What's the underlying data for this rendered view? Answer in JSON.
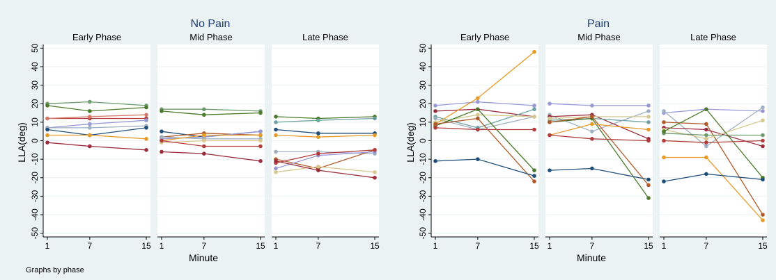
{
  "note": "Graphs by phase",
  "colors": {
    "figure_bg": "#eaf2f3",
    "plot_bg": "#ffffff",
    "strip_bg": "#eaf2f3",
    "gridline": "#eaf2f3"
  },
  "chart_data": [
    {
      "type": "line",
      "title": "No Pain",
      "xlabel": "Minute",
      "ylabel": "LLA(deg)",
      "x": [
        1,
        7,
        15
      ],
      "xticks": [
        "1",
        "7",
        "15"
      ],
      "ylim": [
        -52,
        52
      ],
      "yticks": [
        -50,
        -40,
        -30,
        -20,
        -10,
        0,
        10,
        20,
        30,
        40,
        50
      ],
      "grid": true,
      "panels": [
        {
          "title": "Early Phase",
          "series": [
            {
              "color": "#6e9a6e",
              "values": [
                20,
                21,
                19
              ]
            },
            {
              "color": "#4a7a2a",
              "values": [
                19,
                16,
                18
              ]
            },
            {
              "color": "#b23b3b",
              "values": [
                12,
                12,
                12
              ]
            },
            {
              "color": "#d67a6a",
              "values": [
                12,
                13,
                14
              ]
            },
            {
              "color": "#9999d6",
              "values": [
                7,
                9,
                11
              ]
            },
            {
              "color": "#9fb0c0",
              "values": [
                7,
                7,
                8
              ]
            },
            {
              "color": "#1e4d7a",
              "values": [
                6,
                3,
                7
              ]
            },
            {
              "color": "#e69b27",
              "values": [
                3,
                3,
                1
              ]
            },
            {
              "color": "#9b2d3d",
              "values": [
                -1,
                -3,
                -5
              ]
            }
          ]
        },
        {
          "title": "Mid Phase",
          "series": [
            {
              "color": "#6e9a6e",
              "values": [
                17,
                17,
                16
              ]
            },
            {
              "color": "#4a7a2a",
              "values": [
                16,
                14,
                15
              ]
            },
            {
              "color": "#1e4d7a",
              "values": [
                5,
                2,
                5
              ]
            },
            {
              "color": "#b05a2a",
              "values": [
                2,
                4,
                3
              ]
            },
            {
              "color": "#9999d6",
              "values": [
                1,
                2,
                5
              ]
            },
            {
              "color": "#9fb0c0",
              "values": [
                2,
                1,
                1
              ]
            },
            {
              "color": "#e69b27",
              "values": [
                0,
                3,
                3
              ]
            },
            {
              "color": "#d6c890",
              "values": [
                -1,
                0,
                0
              ]
            },
            {
              "color": "#b23b3b",
              "values": [
                0,
                -3,
                -3
              ]
            },
            {
              "color": "#9b2d3d",
              "values": [
                -6,
                -7,
                -11
              ]
            }
          ]
        },
        {
          "title": "Late Phase",
          "series": [
            {
              "color": "#4a7a2a",
              "values": [
                13,
                12,
                13
              ]
            },
            {
              "color": "#6fa3a3",
              "values": [
                10,
                11,
                12
              ]
            },
            {
              "color": "#1e4d7a",
              "values": [
                6,
                4,
                4
              ]
            },
            {
              "color": "#e69b27",
              "values": [
                3,
                2,
                3
              ]
            },
            {
              "color": "#9fb0c0",
              "values": [
                -6,
                -6,
                -7
              ]
            },
            {
              "color": "#b05a2a",
              "values": [
                -10,
                -15,
                -5
              ]
            },
            {
              "color": "#9999d6",
              "values": [
                -15,
                -8,
                -6
              ]
            },
            {
              "color": "#b23b3b",
              "values": [
                -12,
                -7,
                -5
              ]
            },
            {
              "color": "#d6c890",
              "values": [
                -17,
                -14,
                -17
              ]
            },
            {
              "color": "#9b2d3d",
              "values": [
                -11,
                -16,
                -20
              ]
            }
          ]
        }
      ]
    },
    {
      "type": "line",
      "title": "Pain",
      "xlabel": "Minute",
      "ylabel": "LLA(deg)",
      "x": [
        1,
        7,
        15
      ],
      "xticks": [
        "1",
        "7",
        "15"
      ],
      "ylim": [
        -52,
        52
      ],
      "yticks": [
        -50,
        -40,
        -30,
        -20,
        -10,
        0,
        10,
        20,
        30,
        40,
        50
      ],
      "grid": true,
      "panels": [
        {
          "title": "Early Phase",
          "series": [
            {
              "color": "#9999d6",
              "values": [
                19,
                21,
                19
              ]
            },
            {
              "color": "#9b2d3d",
              "values": [
                16,
                17,
                13
              ]
            },
            {
              "color": "#6fa3a3",
              "values": [
                13,
                7,
                17
              ]
            },
            {
              "color": "#9fb0c0",
              "values": [
                12,
                6,
                13
              ]
            },
            {
              "color": "#d6c890",
              "values": [
                10,
                14,
                13
              ]
            },
            {
              "color": "#4a7a2a",
              "values": [
                8,
                17,
                -16
              ]
            },
            {
              "color": "#e69b27",
              "values": [
                9,
                23,
                48
              ]
            },
            {
              "color": "#b05a2a",
              "values": [
                9,
                12,
                -22
              ]
            },
            {
              "color": "#b23b3b",
              "values": [
                7,
                6,
                6
              ]
            },
            {
              "color": "#1e4d7a",
              "values": [
                -11,
                -10,
                -19
              ]
            }
          ]
        },
        {
          "title": "Mid Phase",
          "series": [
            {
              "color": "#9999d6",
              "values": [
                20,
                19,
                19
              ]
            },
            {
              "color": "#9fb0c0",
              "values": [
                14,
                5,
                16
              ]
            },
            {
              "color": "#9b2d3d",
              "values": [
                13,
                14,
                1
              ]
            },
            {
              "color": "#6fa3a3",
              "values": [
                11,
                12,
                10
              ]
            },
            {
              "color": "#4a7a2a",
              "values": [
                10,
                12,
                -31
              ]
            },
            {
              "color": "#d6c890",
              "values": [
                12,
                13,
                13
              ]
            },
            {
              "color": "#b05a2a",
              "values": [
                10,
                13,
                -24
              ]
            },
            {
              "color": "#e69b27",
              "values": [
                3,
                9,
                6
              ]
            },
            {
              "color": "#b23b3b",
              "values": [
                3,
                1,
                0
              ]
            },
            {
              "color": "#1e4d7a",
              "values": [
                -16,
                -15,
                -21
              ]
            }
          ]
        },
        {
          "title": "Late Phase",
          "series": [
            {
              "color": "#9999d6",
              "values": [
                15,
                17,
                16
              ]
            },
            {
              "color": "#9fb0c0",
              "values": [
                16,
                -3,
                18
              ]
            },
            {
              "color": "#b05a2a",
              "values": [
                10,
                9,
                -40
              ]
            },
            {
              "color": "#9b2d3d",
              "values": [
                7,
                6,
                -3
              ]
            },
            {
              "color": "#d6c890",
              "values": [
                6,
                1,
                11
              ]
            },
            {
              "color": "#6e9a6e",
              "values": [
                4,
                3,
                3
              ]
            },
            {
              "color": "#4a7a2a",
              "values": [
                5,
                17,
                -20
              ]
            },
            {
              "color": "#b23b3b",
              "values": [
                0,
                -1,
                0
              ]
            },
            {
              "color": "#e69b27",
              "values": [
                -9,
                -9,
                -43
              ]
            },
            {
              "color": "#1e4d7a",
              "values": [
                -22,
                -18,
                -21
              ]
            }
          ]
        }
      ]
    }
  ]
}
